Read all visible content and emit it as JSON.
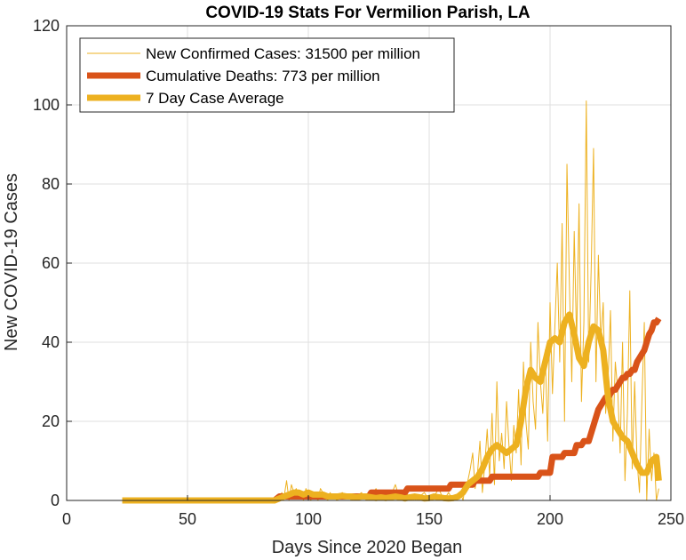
{
  "chart_data": {
    "type": "line",
    "title": "COVID-19 Stats For Vermilion Parish, LA",
    "xlabel": "Days Since 2020 Began",
    "ylabel": "New COVID-19 Cases",
    "xlim": [
      0,
      250
    ],
    "ylim": [
      0,
      120
    ],
    "xticks": [
      0,
      50,
      100,
      150,
      200,
      250
    ],
    "yticks": [
      0,
      20,
      40,
      60,
      80,
      100,
      120
    ],
    "grid": true,
    "legend_position": "top-left",
    "series": [
      {
        "name": "New Confirmed Cases: 31500 per million",
        "color": "#EDB120",
        "style": "thin",
        "x": [
          23,
          30,
          40,
          50,
          60,
          70,
          80,
          86,
          87,
          88,
          89,
          90,
          91,
          92,
          93,
          94,
          95,
          96,
          97,
          98,
          99,
          100,
          101,
          102,
          103,
          104,
          105,
          106,
          107,
          108,
          109,
          110,
          112,
          114,
          116,
          118,
          120,
          122,
          124,
          126,
          128,
          130,
          132,
          134,
          136,
          138,
          140,
          142,
          144,
          146,
          148,
          150,
          152,
          154,
          156,
          158,
          160,
          162,
          163,
          164,
          165,
          166,
          167,
          168,
          169,
          170,
          171,
          172,
          173,
          174,
          175,
          176,
          177,
          178,
          179,
          180,
          181,
          182,
          183,
          184,
          185,
          186,
          187,
          188,
          189,
          190,
          191,
          192,
          193,
          194,
          195,
          196,
          197,
          198,
          199,
          200,
          201,
          202,
          203,
          204,
          205,
          206,
          207,
          208,
          209,
          210,
          211,
          212,
          213,
          214,
          215,
          216,
          217,
          218,
          219,
          220,
          221,
          222,
          223,
          224,
          225,
          226,
          227,
          228,
          229,
          230,
          231,
          232,
          233,
          234,
          235,
          236,
          237,
          238,
          239,
          240,
          241,
          242,
          243,
          244,
          245
        ],
        "values": [
          0,
          0,
          0,
          0,
          0,
          0,
          0,
          0,
          1,
          0,
          2,
          1,
          5,
          0,
          4,
          2,
          3,
          1,
          2,
          0,
          3,
          1,
          0,
          2,
          1,
          0,
          3,
          2,
          1,
          0,
          2,
          1,
          0,
          2,
          1,
          0,
          1,
          2,
          0,
          1,
          3,
          0,
          2,
          1,
          4,
          0,
          2,
          1,
          0,
          1,
          2,
          0,
          1,
          3,
          0,
          2,
          0,
          1,
          2,
          0,
          4,
          5,
          8,
          12,
          3,
          7,
          15,
          2,
          9,
          18,
          6,
          22,
          4,
          30,
          10,
          17,
          8,
          25,
          14,
          5,
          19,
          12,
          28,
          9,
          35,
          20,
          13,
          40,
          25,
          18,
          45,
          30,
          22,
          38,
          15,
          50,
          27,
          44,
          60,
          35,
          70,
          20,
          85,
          55,
          30,
          68,
          40,
          75,
          25,
          45,
          101,
          35,
          58,
          89,
          30,
          62,
          40,
          50,
          22,
          30,
          48,
          15,
          35,
          28,
          12,
          40,
          5,
          22,
          53,
          8,
          30,
          10,
          2,
          25,
          45,
          0,
          18,
          5,
          12,
          0,
          3
        ],
        "lw": 1
      },
      {
        "name": "Cumulative Deaths: 773 per million",
        "color": "#D95319",
        "style": "thick",
        "x": [
          86,
          88,
          100,
          120,
          125,
          126,
          135,
          136,
          140,
          141,
          158,
          159,
          168,
          169,
          170,
          171,
          175,
          176,
          195,
          196,
          200,
          201,
          205,
          206,
          210,
          211,
          213,
          214,
          216,
          217,
          218,
          219,
          220,
          221,
          222,
          223,
          224,
          225,
          226,
          227,
          228,
          229,
          230,
          231,
          232,
          233,
          234,
          235,
          236,
          237,
          238,
          239,
          240,
          241,
          242,
          243,
          244,
          245
        ],
        "values": [
          0,
          1,
          1,
          1,
          1,
          2,
          2,
          2,
          2,
          3,
          3,
          4,
          4,
          5,
          5,
          5,
          5,
          6,
          6,
          7,
          7,
          11,
          11,
          12,
          12,
          14,
          14,
          15,
          15,
          17,
          19,
          21,
          23,
          24,
          25,
          26,
          26,
          27,
          28,
          28,
          29,
          30,
          31,
          31,
          32,
          32,
          33,
          33,
          35,
          36,
          37,
          38,
          40,
          42,
          43,
          45,
          45,
          46
        ],
        "lw": 7
      },
      {
        "name": "7 Day Case Average",
        "color": "#EDB120",
        "style": "thick",
        "x": [
          23,
          30,
          40,
          50,
          60,
          70,
          80,
          86,
          88,
          90,
          92,
          94,
          96,
          98,
          100,
          102,
          104,
          106,
          108,
          110,
          112,
          114,
          116,
          118,
          120,
          122,
          124,
          126,
          128,
          130,
          132,
          134,
          136,
          138,
          140,
          142,
          144,
          146,
          148,
          150,
          152,
          154,
          156,
          158,
          160,
          162,
          164,
          166,
          168,
          170,
          172,
          174,
          176,
          178,
          180,
          182,
          184,
          186,
          188,
          190,
          192,
          194,
          196,
          198,
          200,
          202,
          204,
          206,
          208,
          210,
          212,
          214,
          216,
          218,
          220,
          222,
          224,
          226,
          228,
          230,
          232,
          234,
          236,
          238,
          240,
          242,
          244,
          245
        ],
        "values": [
          0,
          0,
          0,
          0,
          0,
          0,
          0,
          0,
          0.5,
          1,
          1.5,
          2,
          2,
          1.5,
          2,
          1.5,
          1.5,
          1.5,
          1,
          1,
          1,
          1.2,
          1,
          1,
          0.8,
          1,
          1,
          0.8,
          0.6,
          0.8,
          0.6,
          0.8,
          1,
          0.8,
          0.5,
          0.8,
          1,
          0.8,
          0.5,
          0.6,
          1,
          0.8,
          0.6,
          0.5,
          0.6,
          1,
          2,
          4,
          5,
          6,
          8,
          11,
          13,
          14,
          13,
          12,
          13,
          14,
          20,
          28,
          33,
          31,
          30,
          35,
          40,
          41,
          40,
          45,
          47,
          42,
          36,
          34,
          40,
          44,
          43,
          38,
          26,
          20,
          18,
          16,
          15,
          12,
          9,
          7,
          7,
          10,
          11,
          5
        ],
        "lw": 7
      }
    ]
  }
}
